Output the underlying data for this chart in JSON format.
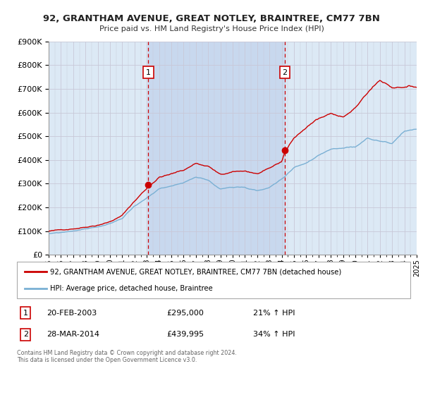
{
  "title_line1": "92, GRANTHAM AVENUE, GREAT NOTLEY, BRAINTREE, CM77 7BN",
  "title_line2": "Price paid vs. HM Land Registry's House Price Index (HPI)",
  "ylim": [
    0,
    900000
  ],
  "yticks": [
    0,
    100000,
    200000,
    300000,
    400000,
    500000,
    600000,
    700000,
    800000,
    900000
  ],
  "ytick_labels": [
    "£0",
    "£100K",
    "£200K",
    "£300K",
    "£400K",
    "£500K",
    "£600K",
    "£700K",
    "£800K",
    "£900K"
  ],
  "x_start_year": 1995,
  "x_end_year": 2025,
  "legend_line1": "92, GRANTHAM AVENUE, GREAT NOTLEY, BRAINTREE, CM77 7BN (detached house)",
  "legend_line2": "HPI: Average price, detached house, Braintree",
  "marker1_year": 2003.13,
  "marker1_value": 295000,
  "marker1_label": "1",
  "marker1_date": "20-FEB-2003",
  "marker1_price": "£295,000",
  "marker1_hpi": "21% ↑ HPI",
  "marker2_year": 2014.24,
  "marker2_value": 439995,
  "marker2_label": "2",
  "marker2_date": "28-MAR-2014",
  "marker2_price": "£439,995",
  "marker2_hpi": "34% ↑ HPI",
  "red_line_color": "#cc0000",
  "blue_line_color": "#7ab0d4",
  "background_color": "#ffffff",
  "plot_bg_color": "#dce9f5",
  "grid_color": "#c8c8d8",
  "shade_color": "#c8d8ee",
  "footnote": "Contains HM Land Registry data © Crown copyright and database right 2024.\nThis data is licensed under the Open Government Licence v3.0."
}
